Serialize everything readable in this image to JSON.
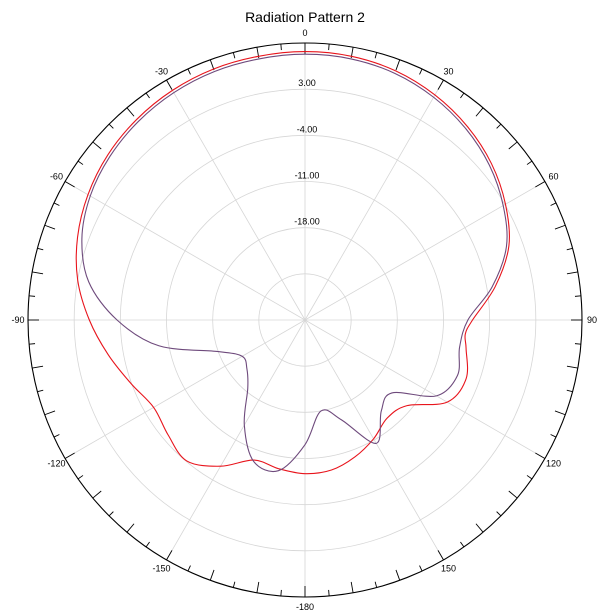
{
  "chart_data": {
    "type": "polar-line",
    "title": "Radiation Pattern 2",
    "angle_unit": "deg",
    "angle_zero": "top",
    "angle_direction": "clockwise",
    "angle_tick_labels": [
      {
        "angle": 0,
        "label": "0"
      },
      {
        "angle": 30,
        "label": "30"
      },
      {
        "angle": 60,
        "label": "60"
      },
      {
        "angle": 90,
        "label": "90"
      },
      {
        "angle": 120,
        "label": "120"
      },
      {
        "angle": 150,
        "label": "150"
      },
      {
        "angle": 180,
        "label": "-180"
      },
      {
        "angle": -150,
        "label": "-150"
      },
      {
        "angle": -120,
        "label": "-120"
      },
      {
        "angle": -90,
        "label": "-90"
      },
      {
        "angle": -60,
        "label": "-60"
      },
      {
        "angle": -30,
        "label": "-30"
      }
    ],
    "radial_range": [
      -32,
      10
    ],
    "radial_tick_labels": [
      {
        "value": 3,
        "label": "3.00"
      },
      {
        "value": -4,
        "label": "-4.00"
      },
      {
        "value": -11,
        "label": "-11.00"
      },
      {
        "value": -18,
        "label": "-18.00"
      }
    ],
    "radial_ring_values": [
      -25,
      -18,
      -11,
      -4,
      3
    ],
    "radial_label_angle": 0,
    "minor_tick_step": 5,
    "major_tick_step": 10,
    "grid": true,
    "series": [
      {
        "color": "#e8141c",
        "points": [
          {
            "angle": 0,
            "r": 8.7
          },
          {
            "angle": 10,
            "r": 8.6
          },
          {
            "angle": 20,
            "r": 8.2
          },
          {
            "angle": 30,
            "r": 7.4
          },
          {
            "angle": 40,
            "r": 6.3
          },
          {
            "angle": 50,
            "r": 4.9
          },
          {
            "angle": 60,
            "r": 3.1
          },
          {
            "angle": 70,
            "r": 0.9
          },
          {
            "angle": 80,
            "r": -2.7
          },
          {
            "angle": 90,
            "r": -6.6
          },
          {
            "angle": 95,
            "r": -7.6
          },
          {
            "angle": 100,
            "r": -7.2
          },
          {
            "angle": 110,
            "r": -6.0
          },
          {
            "angle": 120,
            "r": -7.1
          },
          {
            "angle": 130,
            "r": -11.8
          },
          {
            "angle": 140,
            "r": -12.6
          },
          {
            "angle": 150,
            "r": -11.2
          },
          {
            "angle": 160,
            "r": -9.9
          },
          {
            "angle": 170,
            "r": -8.9
          },
          {
            "angle": 180,
            "r": -8.7
          },
          {
            "angle": 190,
            "r": -9.1
          },
          {
            "angle": 200,
            "r": -9.4
          },
          {
            "angle": 210,
            "r": -6.4
          },
          {
            "angle": 220,
            "r": -4.1
          },
          {
            "angle": 230,
            "r": -4.9
          },
          {
            "angle": 240,
            "r": -5.5
          },
          {
            "angle": 250,
            "r": -3.9
          },
          {
            "angle": 260,
            "r": -1.7
          },
          {
            "angle": 270,
            "r": 0.7
          },
          {
            "angle": 280,
            "r": 3.0
          },
          {
            "angle": 290,
            "r": 4.7
          },
          {
            "angle": 300,
            "r": 6.0
          },
          {
            "angle": 310,
            "r": 7.0
          },
          {
            "angle": 320,
            "r": 7.7
          },
          {
            "angle": 330,
            "r": 8.2
          },
          {
            "angle": 340,
            "r": 8.5
          },
          {
            "angle": 350,
            "r": 8.6
          },
          {
            "angle": 360,
            "r": 8.7
          }
        ]
      },
      {
        "color": "#6e4a7c",
        "points": [
          {
            "angle": 0,
            "r": 8.3
          },
          {
            "angle": 10,
            "r": 8.2
          },
          {
            "angle": 20,
            "r": 7.8
          },
          {
            "angle": 30,
            "r": 7.0
          },
          {
            "angle": 40,
            "r": 5.9
          },
          {
            "angle": 50,
            "r": 4.5
          },
          {
            "angle": 60,
            "r": 2.7
          },
          {
            "angle": 70,
            "r": 0.5
          },
          {
            "angle": 80,
            "r": -3.2
          },
          {
            "angle": 90,
            "r": -7.3
          },
          {
            "angle": 100,
            "r": -8.2
          },
          {
            "angle": 110,
            "r": -7.4
          },
          {
            "angle": 120,
            "r": -9.0
          },
          {
            "angle": 130,
            "r": -14.8
          },
          {
            "angle": 140,
            "r": -14.0
          },
          {
            "angle": 150,
            "r": -10.4
          },
          {
            "angle": 160,
            "r": -15.9
          },
          {
            "angle": 170,
            "r": -18.0
          },
          {
            "angle": 180,
            "r": -13.1
          },
          {
            "angle": 190,
            "r": -8.8
          },
          {
            "angle": 200,
            "r": -9.2
          },
          {
            "angle": 210,
            "r": -13.6
          },
          {
            "angle": 220,
            "r": -18.5
          },
          {
            "angle": 230,
            "r": -20.5
          },
          {
            "angle": 240,
            "r": -21.0
          },
          {
            "angle": 250,
            "r": -18.0
          },
          {
            "angle": 260,
            "r": -9.5
          },
          {
            "angle": 270,
            "r": -3.5
          },
          {
            "angle": 280,
            "r": 1.3
          },
          {
            "angle": 290,
            "r": 4.0
          },
          {
            "angle": 300,
            "r": 5.6
          },
          {
            "angle": 310,
            "r": 6.6
          },
          {
            "angle": 320,
            "r": 7.3
          },
          {
            "angle": 330,
            "r": 7.8
          },
          {
            "angle": 340,
            "r": 8.1
          },
          {
            "angle": 350,
            "r": 8.2
          },
          {
            "angle": 360,
            "r": 8.3
          }
        ]
      }
    ]
  }
}
